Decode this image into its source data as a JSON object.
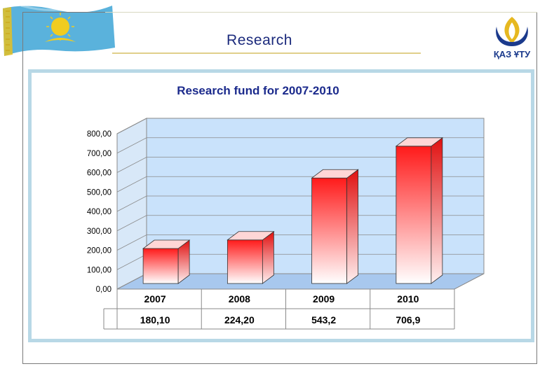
{
  "header": {
    "title": "Research",
    "logo_text": "ҚАЗ ҰТУ"
  },
  "colors": {
    "title": "#1b2a7c",
    "chart_title": "#1b2a8c",
    "plot_back": "#c9e2fb",
    "bar_top": "#ff2020",
    "bar_bottom": "#ffffff",
    "panel": "#b8d8e6",
    "flag_blue": "#5ab2dc",
    "flag_gold": "#e6c020"
  },
  "chart_data": {
    "type": "bar",
    "title": "Research fund for 2007-2010",
    "categories": [
      "2007",
      "2008",
      "2009",
      "2010"
    ],
    "values": [
      180.1,
      224.2,
      543.2,
      706.9
    ],
    "value_labels": [
      "180,10",
      "224,20",
      "543,2",
      "706,9"
    ],
    "ylim": [
      0,
      800
    ],
    "yticks": [
      "0,00",
      "100,00",
      "200,00",
      "300,00",
      "400,00",
      "500,00",
      "600,00",
      "700,00",
      "800,00"
    ],
    "grid": true,
    "three_d": true,
    "data_table": true
  }
}
